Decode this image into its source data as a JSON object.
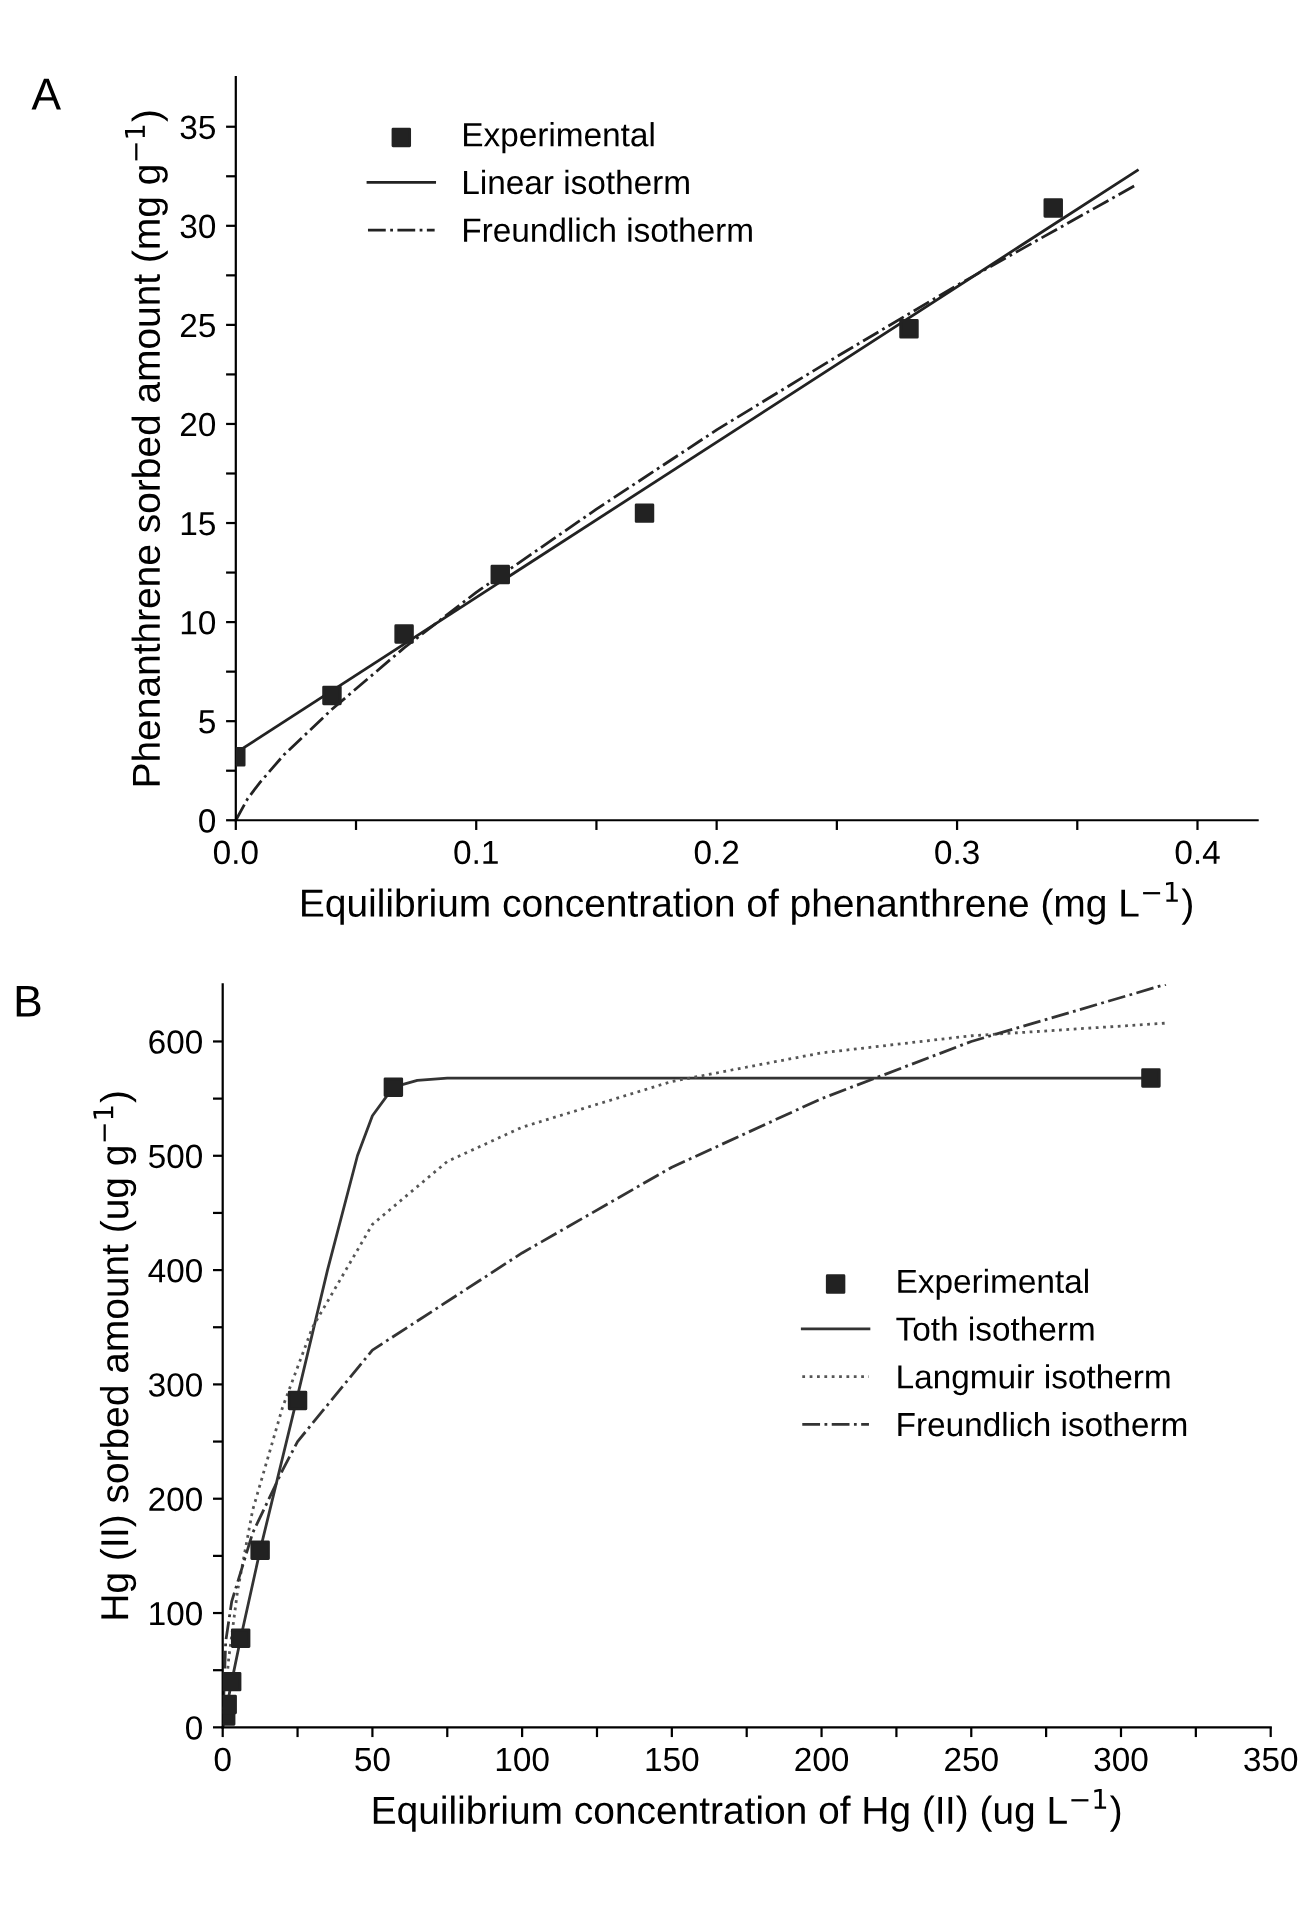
{
  "chart_data": [
    {
      "type": "line",
      "annotations": [
        "A"
      ],
      "xlabel": "Equilibrium concentration of phenanthrene (mg L$^{−1}$)",
      "ylabel": "Phenanthrene sorbed amount (mg g$^{−1}$)",
      "xlim": [
        0,
        0.425
      ],
      "ylim": [
        0,
        37.5
      ],
      "xticks": [
        {
          "value": 0,
          "label": "0.0"
        },
        {
          "value": 0.05,
          "label": null
        },
        0.1,
        {
          "value": 0.15,
          "label": null
        },
        0.2,
        {
          "value": 0.25,
          "label": null
        },
        0.3,
        {
          "value": 0.35,
          "label": null
        },
        0.4
      ],
      "yticks": [
        0,
        {
          "value": 2.5,
          "label": null
        },
        5,
        {
          "value": 7.5,
          "label": null
        },
        10,
        {
          "value": 12.5,
          "label": null
        },
        15,
        {
          "value": 17.5,
          "label": null
        },
        20,
        {
          "value": 22.5,
          "label": null
        },
        25,
        {
          "value": 27.5,
          "label": null
        },
        30,
        {
          "value": 32.5,
          "label": null
        },
        35
      ],
      "legend": "top left",
      "grid": false,
      "series": [
        {
          "name": "Experimental",
          "type": "scatter",
          "marker": "square",
          "color": "#222222",
          "x": [
            0,
            0.04,
            0.07,
            0.11,
            0.17,
            0.28,
            0.34
          ],
          "values": [
            3.2,
            6.3,
            9.4,
            12.4,
            15.5,
            24.8,
            30.9
          ]
        },
        {
          "name": "Linear isotherm",
          "line_style": "solid",
          "color": "#222222",
          "x": [
            0,
            0.375
          ],
          "values": [
            3.4,
            32.8
          ]
        },
        {
          "name": "Freundlich isotherm",
          "line_style": "dashdot",
          "color": "#222222",
          "x": [
            0,
            0.005,
            0.01,
            0.02,
            0.04,
            0.07,
            0.1,
            0.15,
            0.2,
            0.25,
            0.3,
            0.375
          ],
          "values": [
            0,
            1.1,
            1.9,
            3.3,
            5.6,
            8.7,
            11.5,
            15.7,
            19.7,
            23.4,
            27.0,
            32.1
          ]
        }
      ]
    },
    {
      "type": "line",
      "annotations": [
        "B"
      ],
      "xlabel": "Equilibrium concentration of Hg (II) (ug L$^{−1}$)",
      "ylabel": "Hg (II) sorbed amount (ug g$^{−1}$)",
      "xlim": [
        0,
        350
      ],
      "ylim": [
        0,
        650
      ],
      "xticks": [
        0,
        {
          "value": 25,
          "label": null
        },
        50,
        {
          "value": 75,
          "label": null
        },
        100,
        {
          "value": 125,
          "label": null
        },
        150,
        {
          "value": 175,
          "label": null
        },
        200,
        {
          "value": 225,
          "label": null
        },
        250,
        {
          "value": 275,
          "label": null
        },
        300,
        {
          "value": 325,
          "label": null
        },
        350
      ],
      "yticks": [
        0,
        {
          "value": 50,
          "label": null
        },
        100,
        {
          "value": 150,
          "label": null
        },
        200,
        {
          "value": 250,
          "label": null
        },
        300,
        {
          "value": 350,
          "label": null
        },
        400,
        {
          "value": 450,
          "label": null
        },
        500,
        {
          "value": 550,
          "label": null
        },
        600
      ],
      "legend": "right",
      "grid": false,
      "series": [
        {
          "name": "Experimental",
          "type": "scatter",
          "marker": "square",
          "color": "#222222",
          "x": [
            1,
            1.5,
            3,
            6,
            12.5,
            25,
            57,
            310
          ],
          "values": [
            10,
            20,
            40,
            78,
            155,
            286,
            560,
            568
          ]
        },
        {
          "name": "Toth isotherm",
          "line_style": "solid",
          "color": "#333333",
          "x": [
            0,
            3,
            6,
            12.5,
            25,
            35,
            45,
            50,
            57,
            65,
            75,
            310
          ],
          "values": [
            0,
            40,
            78,
            155,
            290,
            400,
            500,
            535,
            560,
            566,
            568,
            568
          ]
        },
        {
          "name": "Langmuir isotherm",
          "line_style": "dotted",
          "color": "#555555",
          "x": [
            0,
            2,
            5,
            10,
            20,
            30,
            50,
            75,
            100,
            150,
            200,
            250,
            315
          ],
          "values": [
            0,
            60,
            120,
            190,
            280,
            350,
            440,
            495,
            525,
            565,
            590,
            605,
            616
          ]
        },
        {
          "name": "Freundlich isotherm",
          "line_style": "dashdot",
          "color": "#333333",
          "x": [
            0,
            1,
            3,
            10,
            20,
            25,
            50,
            100,
            150,
            200,
            250,
            315
          ],
          "values": [
            0,
            75,
            110,
            170,
            225,
            250,
            330,
            415,
            490,
            550,
            600,
            650
          ]
        }
      ]
    }
  ]
}
